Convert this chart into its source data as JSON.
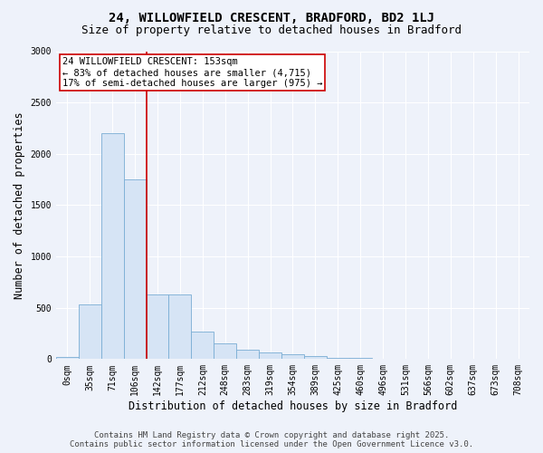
{
  "title_line1": "24, WILLOWFIELD CRESCENT, BRADFORD, BD2 1LJ",
  "title_line2": "Size of property relative to detached houses in Bradford",
  "xlabel": "Distribution of detached houses by size in Bradford",
  "ylabel": "Number of detached properties",
  "categories": [
    "0sqm",
    "35sqm",
    "71sqm",
    "106sqm",
    "142sqm",
    "177sqm",
    "212sqm",
    "248sqm",
    "283sqm",
    "319sqm",
    "354sqm",
    "389sqm",
    "425sqm",
    "460sqm",
    "496sqm",
    "531sqm",
    "566sqm",
    "602sqm",
    "637sqm",
    "673sqm",
    "708sqm"
  ],
  "values": [
    20,
    530,
    2200,
    1750,
    630,
    630,
    270,
    155,
    90,
    65,
    45,
    30,
    10,
    8,
    5,
    3,
    2,
    2,
    1,
    1,
    1
  ],
  "bar_color": "#d6e4f5",
  "bar_edge_color": "#7aadd4",
  "ylim": [
    0,
    3000
  ],
  "yticks": [
    0,
    500,
    1000,
    1500,
    2000,
    2500,
    3000
  ],
  "vline_index": 3.5,
  "marker_label": "24 WILLOWFIELD CRESCENT: 153sqm",
  "annotation_line1": "← 83% of detached houses are smaller (4,715)",
  "annotation_line2": "17% of semi-detached houses are larger (975) →",
  "vline_color": "#cc0000",
  "annotation_box_facecolor": "#ffffff",
  "annotation_box_edgecolor": "#cc0000",
  "background_color": "#eef2fa",
  "plot_background": "#eef2fa",
  "footer_line1": "Contains HM Land Registry data © Crown copyright and database right 2025.",
  "footer_line2": "Contains public sector information licensed under the Open Government Licence v3.0.",
  "title_fontsize": 10,
  "subtitle_fontsize": 9,
  "axis_label_fontsize": 8.5,
  "tick_fontsize": 7,
  "annotation_fontsize": 7.5,
  "footer_fontsize": 6.5,
  "grid_color": "#ffffff",
  "grid_linewidth": 0.8
}
